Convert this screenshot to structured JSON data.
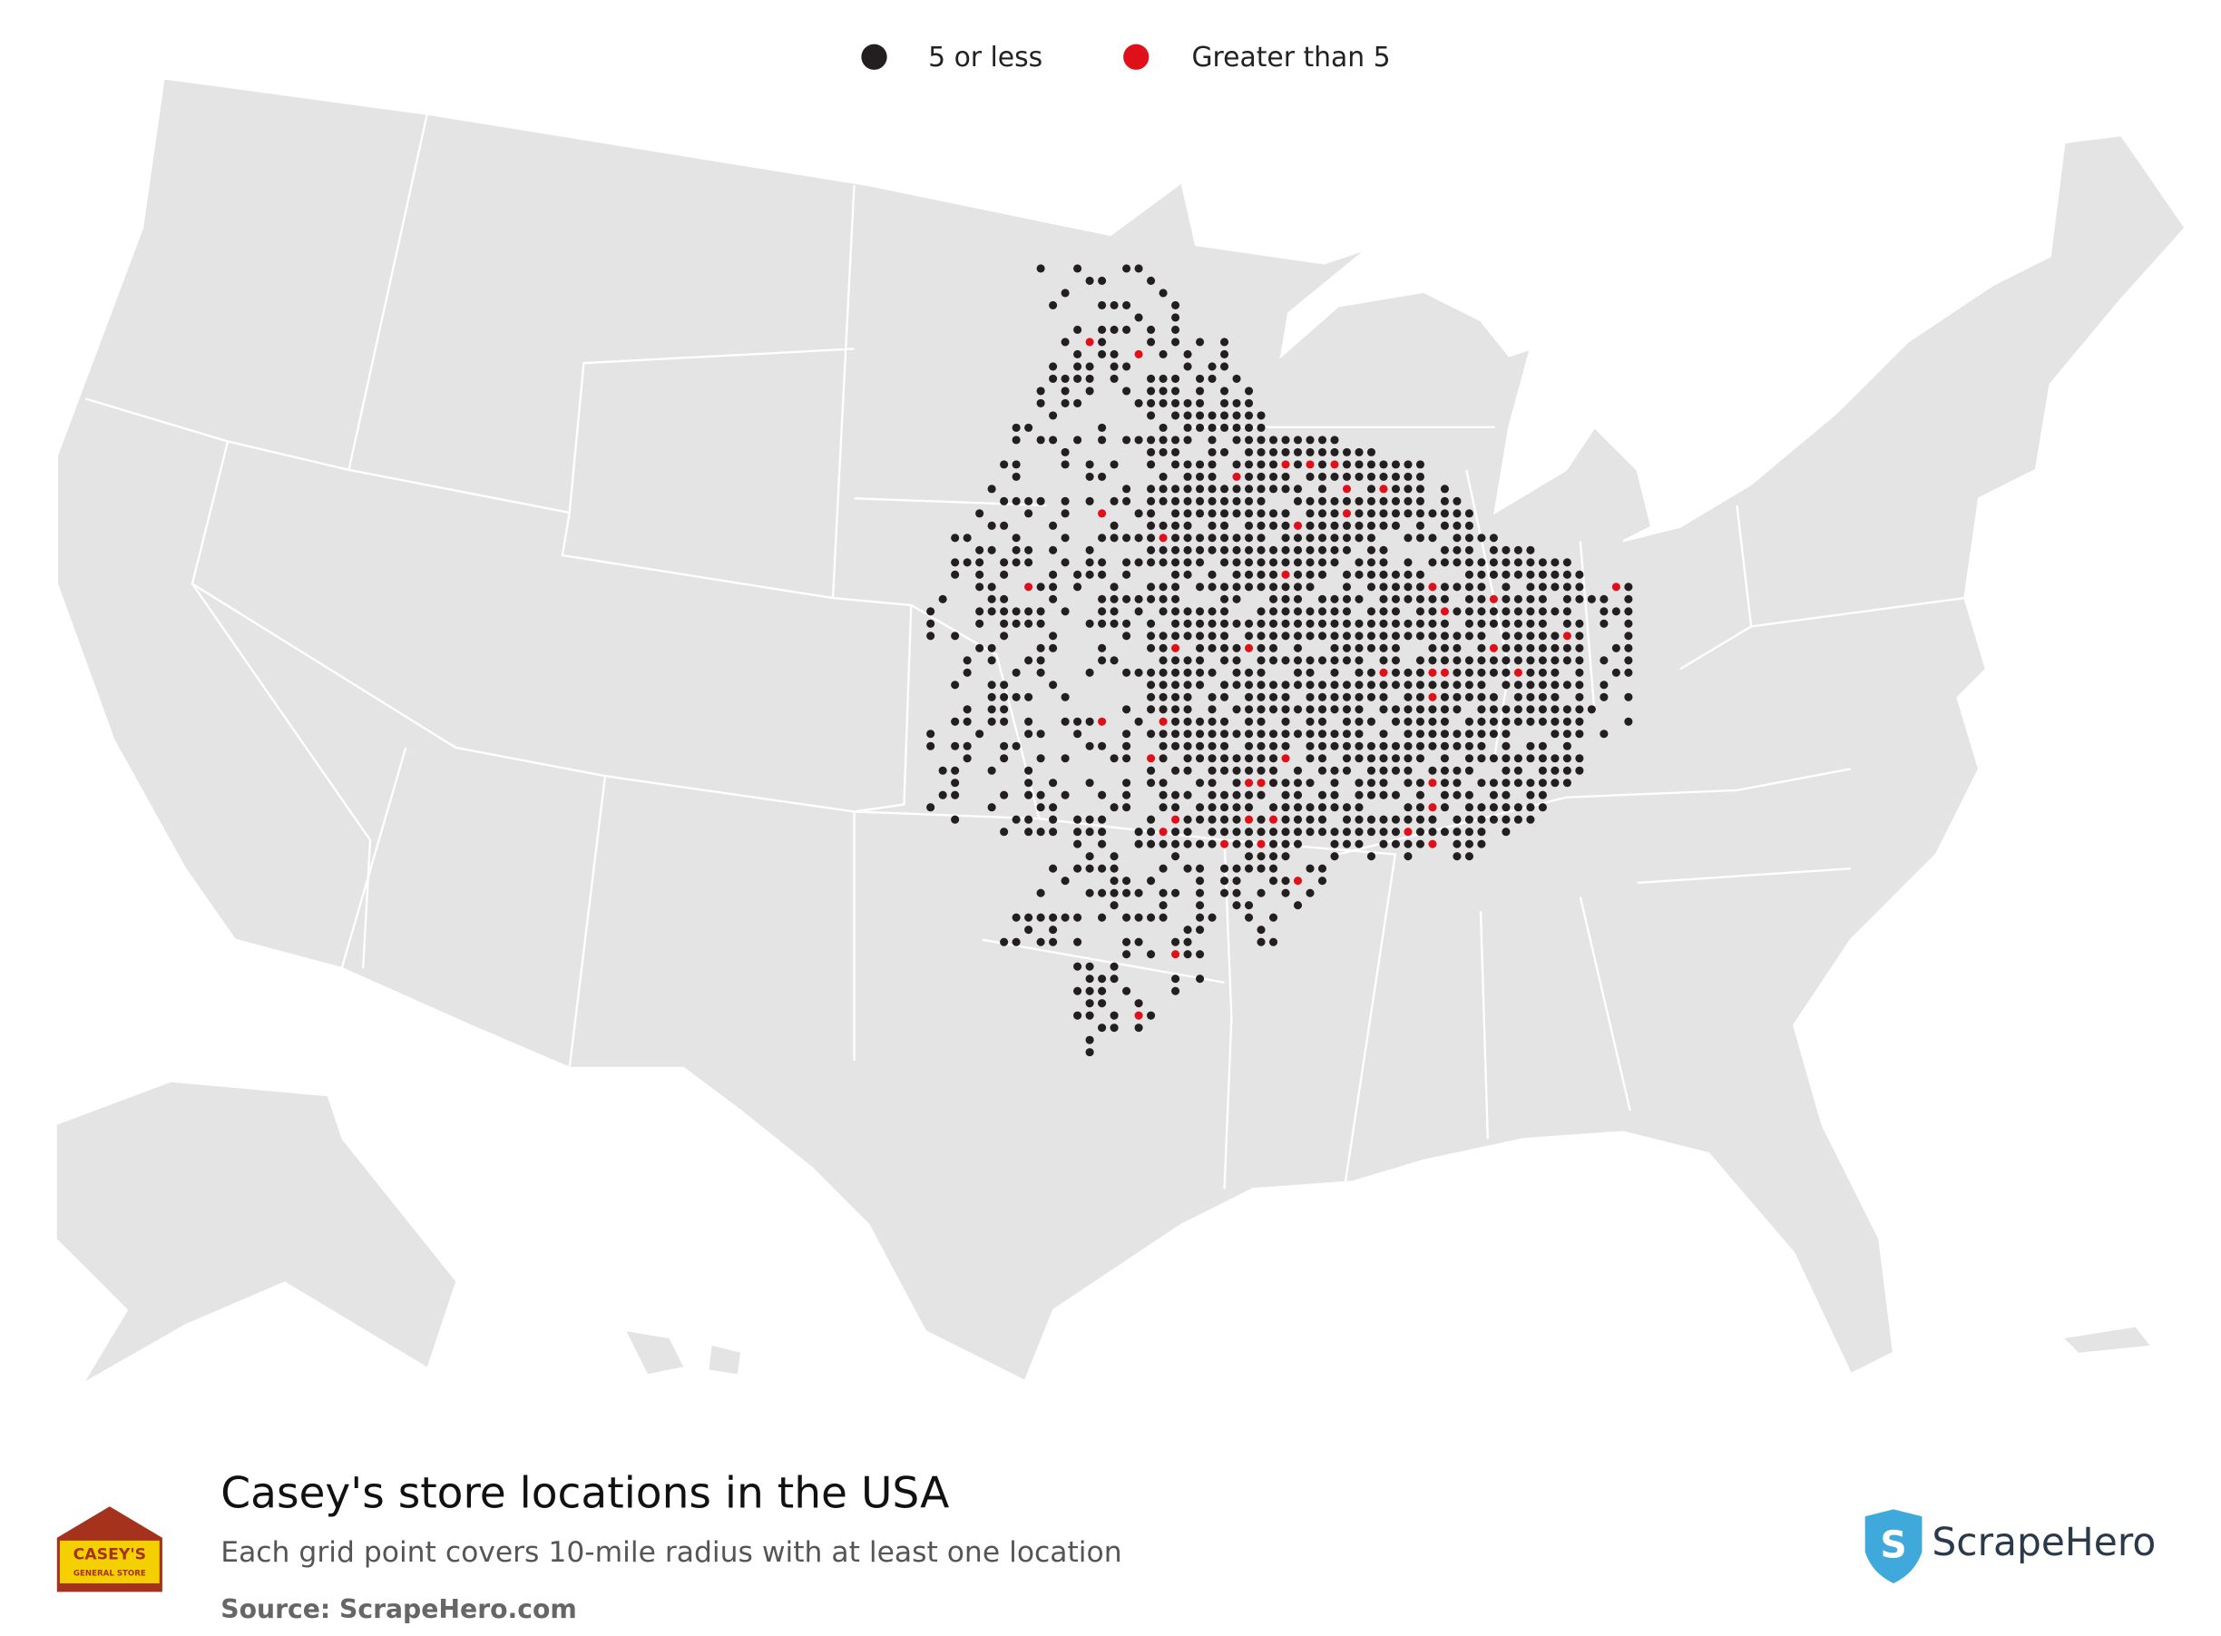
{
  "legend": [
    {
      "label": "5 or less",
      "color": "#231f20"
    },
    {
      "label": "Greater than 5",
      "color": "#e0101a"
    }
  ],
  "title": "Casey's store locations in the USA",
  "subtitle": "Each grid point covers 10-mile radius with at least one location",
  "source": "Source: ScrapeHero.com",
  "logo": {
    "name": "CASEY'S",
    "tagline": "GENERAL STORE"
  },
  "brand": "ScrapeHero"
}
